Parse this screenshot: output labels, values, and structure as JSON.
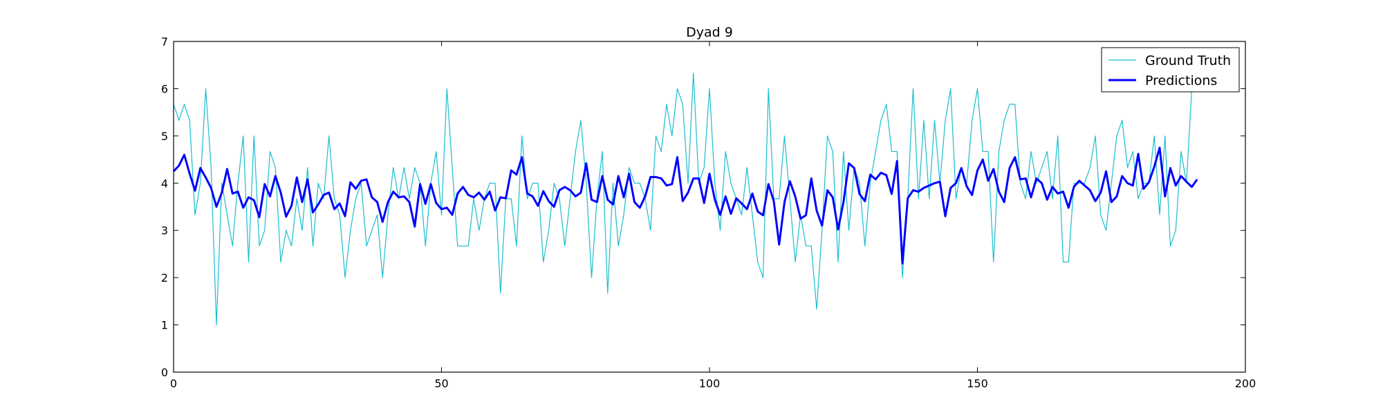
{
  "chart_data": {
    "type": "line",
    "title": "Dyad 9",
    "xlabel": "",
    "ylabel": "",
    "xlim": [
      0,
      200
    ],
    "ylim": [
      0,
      7
    ],
    "xticks": [
      0,
      50,
      100,
      150,
      200
    ],
    "yticks": [
      0,
      1,
      2,
      3,
      4,
      5,
      6,
      7
    ],
    "xtick_labels": [
      "0",
      "50",
      "100",
      "150",
      "200"
    ],
    "ytick_labels": [
      "0",
      "1",
      "2",
      "3",
      "4",
      "5",
      "6",
      "7"
    ],
    "grid": false,
    "legend_position": "top-right",
    "series": [
      {
        "name": "Ground Truth",
        "color": "#17becf",
        "linewidth": 1.2,
        "x_start": 0,
        "values": [
          5.67,
          5.33,
          5.67,
          5.33,
          3.33,
          4.0,
          6.0,
          4.33,
          1.0,
          4.0,
          3.33,
          2.67,
          4.0,
          5.0,
          2.33,
          5.0,
          2.67,
          3.0,
          4.67,
          4.33,
          2.33,
          3.0,
          2.67,
          3.67,
          3.0,
          4.33,
          2.67,
          4.0,
          3.67,
          5.0,
          3.67,
          3.33,
          2.0,
          3.0,
          3.67,
          4.0,
          2.67,
          3.0,
          3.33,
          2.0,
          3.33,
          4.33,
          3.67,
          4.33,
          3.67,
          4.33,
          4.0,
          2.67,
          4.0,
          4.67,
          3.33,
          6.0,
          4.33,
          2.67,
          2.67,
          2.67,
          3.67,
          3.0,
          3.67,
          4.0,
          4.0,
          1.67,
          3.67,
          3.67,
          2.67,
          5.0,
          3.67,
          4.0,
          4.0,
          2.33,
          3.0,
          4.0,
          3.67,
          2.67,
          3.67,
          4.67,
          5.33,
          4.0,
          2.0,
          3.67,
          4.67,
          1.67,
          4.0,
          2.67,
          3.33,
          4.33,
          4.0,
          4.0,
          3.67,
          3.0,
          5.0,
          4.67,
          5.67,
          5.0,
          6.0,
          5.67,
          4.0,
          6.33,
          4.0,
          4.33,
          6.0,
          4.0,
          3.0,
          4.67,
          4.0,
          3.67,
          3.33,
          4.33,
          3.33,
          2.33,
          2.0,
          6.0,
          3.67,
          3.67,
          5.0,
          3.67,
          2.33,
          3.33,
          2.67,
          2.67,
          1.33,
          3.0,
          5.0,
          4.67,
          2.33,
          4.67,
          3.0,
          4.33,
          4.0,
          2.67,
          4.0,
          4.67,
          5.33,
          5.67,
          4.67,
          4.67,
          2.0,
          3.67,
          6.0,
          3.67,
          5.33,
          3.67,
          5.33,
          4.0,
          5.33,
          6.0,
          3.67,
          4.33,
          4.0,
          5.33,
          6.0,
          4.67,
          4.67,
          2.33,
          4.67,
          5.33,
          5.67,
          5.67,
          4.0,
          3.67,
          4.67,
          4.0,
          4.33,
          4.67,
          3.67,
          5.0,
          2.33,
          2.33,
          4.0,
          4.0,
          4.0,
          4.33,
          5.0,
          3.33,
          3.0,
          4.0,
          5.0,
          5.33,
          4.33,
          4.67,
          3.67,
          4.0,
          4.0,
          5.0,
          3.33,
          5.0,
          2.67,
          3.0,
          4.67,
          4.0,
          6.0
        ]
      },
      {
        "name": "Predictions",
        "color": "#0000ff",
        "linewidth": 3,
        "x_start": 0,
        "values": [
          4.25,
          4.37,
          4.6,
          4.2,
          3.84,
          4.32,
          4.12,
          3.9,
          3.5,
          3.8,
          4.3,
          3.78,
          3.82,
          3.48,
          3.7,
          3.64,
          3.28,
          3.98,
          3.72,
          4.15,
          3.8,
          3.29,
          3.52,
          4.12,
          3.6,
          4.08,
          3.38,
          3.55,
          3.75,
          3.8,
          3.45,
          3.57,
          3.3,
          4.02,
          3.88,
          4.05,
          4.08,
          3.7,
          3.6,
          3.18,
          3.6,
          3.82,
          3.7,
          3.72,
          3.6,
          3.08,
          3.98,
          3.56,
          3.98,
          3.58,
          3.45,
          3.48,
          3.33,
          3.78,
          3.92,
          3.75,
          3.7,
          3.8,
          3.65,
          3.82,
          3.42,
          3.7,
          3.68,
          4.27,
          4.18,
          4.55,
          3.78,
          3.72,
          3.52,
          3.83,
          3.62,
          3.5,
          3.85,
          3.92,
          3.85,
          3.72,
          3.8,
          4.42,
          3.65,
          3.6,
          4.15,
          3.65,
          3.55,
          4.15,
          3.7,
          4.2,
          3.6,
          3.48,
          3.72,
          4.13,
          4.13,
          4.1,
          3.95,
          3.98,
          4.55,
          3.62,
          3.8,
          4.1,
          4.1,
          3.58,
          4.2,
          3.65,
          3.33,
          3.72,
          3.35,
          3.68,
          3.57,
          3.45,
          3.78,
          3.4,
          3.32,
          3.98,
          3.62,
          2.7,
          3.6,
          4.04,
          3.72,
          3.25,
          3.32,
          4.1,
          3.42,
          3.1,
          3.85,
          3.7,
          3.02,
          3.6,
          4.42,
          4.32,
          3.77,
          3.62,
          4.18,
          4.08,
          4.22,
          4.17,
          3.77,
          4.47,
          2.3,
          3.68,
          3.85,
          3.82,
          3.9,
          3.95,
          4.0,
          4.03,
          3.3,
          3.9,
          4.0,
          4.32,
          3.93,
          3.75,
          4.27,
          4.5,
          4.05,
          4.3,
          3.82,
          3.6,
          4.32,
          4.55,
          4.08,
          4.1,
          3.7,
          4.1,
          4.0,
          3.65,
          3.92,
          3.78,
          3.82,
          3.48,
          3.92,
          4.05,
          3.95,
          3.85,
          3.62,
          3.8,
          4.25,
          3.6,
          3.72,
          4.15,
          4.0,
          3.95,
          4.62,
          3.88,
          4.02,
          4.35,
          4.75,
          3.72,
          4.32,
          3.95,
          4.15,
          4.03,
          3.92,
          4.08
        ]
      }
    ]
  }
}
